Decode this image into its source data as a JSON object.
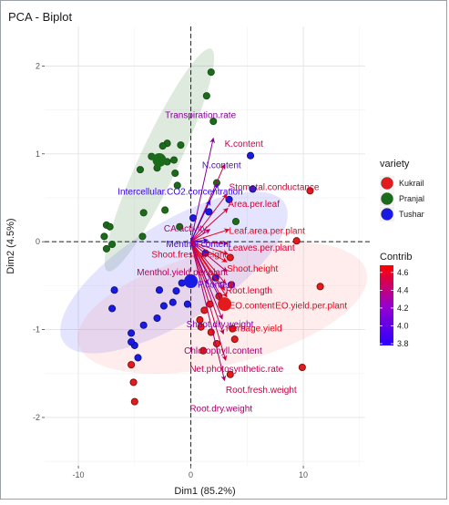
{
  "chart_data": {
    "type": "scatter",
    "title": "PCA - Biplot",
    "xlabel": "Dim1 (85.2%)",
    "ylabel": "Dim2 (4.5%)",
    "xlim": [
      -13,
      15.5
    ],
    "ylim": [
      -2.55,
      2.45
    ],
    "xticks": [
      -10,
      0,
      10
    ],
    "yticks": [
      -2,
      -1,
      0,
      1,
      2
    ],
    "xtick_labels": [
      "-10",
      "0",
      "10"
    ],
    "ytick_labels": [
      "-2",
      "-1",
      "0",
      "1",
      "2"
    ],
    "grid": true,
    "legend_placement": "right",
    "legend_variety": {
      "title": "variety",
      "entries": [
        {
          "name": "Kukrail",
          "color": "#e41a1c"
        },
        {
          "name": "Pranjal",
          "color": "#1a6b1a"
        },
        {
          "name": "Tushar",
          "color": "#1a1ae6"
        }
      ]
    },
    "legend_contrib": {
      "title": "Contrib",
      "range": [
        3.78,
        4.68
      ],
      "ticks": [
        "4.6",
        "4.4",
        "4.2",
        "4.0",
        "3.8"
      ],
      "tick_values": [
        4.6,
        4.4,
        4.2,
        4.0,
        3.8
      ],
      "low_color": "#2b00ff",
      "high_color": "#ff0000"
    },
    "ellipses": [
      {
        "group": "Pranjal",
        "color": "#1a6b1a",
        "cx": -2.8,
        "cy": 0.93,
        "rx": 10.9,
        "ry": 0.37,
        "angle": -65
      },
      {
        "group": "Tushar",
        "color": "#4040ff",
        "cx": -1.5,
        "cy": -0.35,
        "rx": 11.6,
        "ry": 0.93,
        "angle": -32
      },
      {
        "group": "Kukrail",
        "color": "#ff8080",
        "cx": 2.8,
        "cy": -0.75,
        "rx": 13.2,
        "ry": 1.08,
        "angle": -14
      }
    ],
    "series": [
      {
        "name": "Pranjal",
        "color": "#1a6b1a",
        "x": [
          1.8,
          1.4,
          2.0,
          -2.1,
          -0.9,
          -2.5,
          -3.5,
          -1.5,
          -2.1,
          -3.0,
          -4.5,
          -1.4,
          -1.2,
          -2.3,
          -4.2,
          -1.0,
          -4.3,
          -7.0,
          -7.5,
          -7.7,
          -7.5,
          -7.2,
          2.3,
          4.0
        ],
        "y": [
          1.93,
          1.66,
          1.37,
          1.12,
          1.1,
          1.09,
          0.97,
          0.93,
          0.91,
          0.84,
          0.82,
          0.78,
          0.64,
          0.36,
          0.33,
          0.17,
          0.06,
          -0.03,
          -0.08,
          0.06,
          0.19,
          0.17,
          0.67,
          0.23
        ],
        "size": [
          6,
          6,
          6,
          6,
          6,
          6,
          6,
          6,
          6,
          6,
          6,
          6,
          6,
          6,
          6,
          6,
          6,
          6,
          6,
          6,
          6,
          6,
          6,
          6
        ]
      },
      {
        "name": "Tushar",
        "color": "#1a1ae6",
        "x": [
          5.3,
          5.5,
          3.4,
          1.6,
          0.2,
          1.3,
          2.2,
          -0.8,
          -1.3,
          -1.6,
          -2.4,
          -2.8,
          -3.0,
          -4.2,
          -5.3,
          -5.0,
          -5.3,
          -4.7,
          -6.8,
          -7.0,
          -0.3
        ],
        "y": [
          0.98,
          0.6,
          0.48,
          0.34,
          0.27,
          -0.13,
          -0.41,
          -0.47,
          -0.56,
          -0.69,
          -0.73,
          -0.55,
          -0.87,
          -0.95,
          -1.04,
          -1.18,
          -1.14,
          -1.32,
          -0.55,
          -0.76,
          -0.71
        ],
        "size": [
          6,
          6,
          6,
          6,
          6,
          6,
          6,
          6,
          6,
          6,
          6,
          6,
          6,
          6,
          6,
          6,
          6,
          6,
          6,
          6,
          6
        ]
      },
      {
        "name": "Kukrail",
        "color": "#e41a1c",
        "x": [
          10.6,
          9.4,
          11.5,
          3.5,
          3.6,
          2.5,
          1.7,
          1.2,
          0.9,
          3.7,
          1.8,
          3.9,
          1.1,
          9.9,
          2.3,
          3.5,
          -5.0,
          -5.1,
          -5.3,
          0.8
        ],
        "y": [
          0.58,
          0.01,
          -0.51,
          -0.18,
          -0.49,
          -0.62,
          -0.71,
          -0.78,
          -0.97,
          -0.99,
          -1.03,
          -1.11,
          -1.24,
          -1.43,
          -1.16,
          -1.51,
          -1.82,
          -1.6,
          -1.4,
          -0.89
        ],
        "size": [
          6,
          6,
          6,
          6,
          6,
          6,
          6,
          6,
          6,
          6,
          6,
          6,
          6,
          6,
          6,
          6,
          6,
          6,
          6,
          6
        ]
      }
    ],
    "centroids": [
      {
        "group": "Pranjal",
        "x": -2.8,
        "y": 0.93,
        "color": "#1a6b1a"
      },
      {
        "group": "Tushar",
        "x": 0.0,
        "y": -0.45,
        "color": "#1a1ae6"
      },
      {
        "group": "Kukrail",
        "x": 3.0,
        "y": -0.71,
        "color": "#e41a1c"
      }
    ],
    "variables": [
      {
        "label": "Transpiration.rate",
        "x": 2.0,
        "y": 1.18,
        "contrib": 4.15,
        "lx": -2.3,
        "ly": 1.45
      },
      {
        "label": "K.content",
        "x": 3.0,
        "y": 0.88,
        "contrib": 4.45,
        "lx": 3.0,
        "ly": 1.12
      },
      {
        "label": "N.content",
        "x": 2.4,
        "y": 0.66,
        "contrib": 3.95,
        "lx": 1.0,
        "ly": 0.88
      },
      {
        "label": "Stomatal.conductance",
        "x": 3.2,
        "y": 0.54,
        "contrib": 4.5,
        "lx": 3.4,
        "ly": 0.63
      },
      {
        "label": "Intercellular.CO2.concentration",
        "x": 1.7,
        "y": 0.47,
        "contrib": 3.85,
        "lx": -6.5,
        "ly": 0.58
      },
      {
        "label": "Area.per.leaf",
        "x": 3.3,
        "y": 0.38,
        "contrib": 4.5,
        "lx": 3.3,
        "ly": 0.44
      },
      {
        "label": "CA.activity",
        "x": 1.7,
        "y": 0.14,
        "contrib": 4.35,
        "lx": -2.4,
        "ly": 0.16
      },
      {
        "label": "Leaf.area.per.plant",
        "x": 3.4,
        "y": 0.14,
        "contrib": 4.6,
        "lx": 3.4,
        "ly": 0.13
      },
      {
        "label": "Menthol.content",
        "x": 1.5,
        "y": 0.02,
        "contrib": 3.9,
        "lx": -2.2,
        "ly": -0.02
      },
      {
        "label": "Leaves.per.plant",
        "x": 3.3,
        "y": -0.02,
        "contrib": 4.5,
        "lx": 3.3,
        "ly": -0.06
      },
      {
        "label": "Shoot.fresh.weight",
        "x": 3.3,
        "y": -0.14,
        "contrib": 4.55,
        "lx": -3.5,
        "ly": -0.14
      },
      {
        "label": "Shoot.height",
        "x": 3.2,
        "y": -0.23,
        "contrib": 4.6,
        "lx": 3.2,
        "ly": -0.3
      },
      {
        "label": "Menthol.yield.per.plant",
        "x": 3.2,
        "y": -0.34,
        "contrib": 4.35,
        "lx": -4.8,
        "ly": -0.34
      },
      {
        "label": "Root.length",
        "x": 3.1,
        "y": -0.48,
        "contrib": 4.5,
        "lx": 3.1,
        "ly": -0.55
      },
      {
        "label": "P.content",
        "x": 1.5,
        "y": -0.48,
        "contrib": 4.0,
        "lx": 0.6,
        "ly": -0.48
      },
      {
        "label": "EO.content",
        "x": 3.0,
        "y": -0.55,
        "contrib": 4.55,
        "lx": 3.4,
        "ly": -0.72
      },
      {
        "label": "EO.yield.per.plant",
        "x": 3.2,
        "y": -0.63,
        "contrib": 4.6,
        "lx": 7.5,
        "ly": -0.72
      },
      {
        "label": "Shoot.dry.weight",
        "x": 2.8,
        "y": -0.7,
        "contrib": 4.1,
        "lx": -0.4,
        "ly": -0.93
      },
      {
        "label": "Herbage.yield",
        "x": 3.1,
        "y": -0.72,
        "contrib": 4.6,
        "lx": 3.1,
        "ly": -0.98
      },
      {
        "label": "Chlorophyll.content",
        "x": 2.8,
        "y": -0.88,
        "contrib": 4.3,
        "lx": -0.6,
        "ly": -1.23
      },
      {
        "label": "Net.photosynthetic.rate",
        "x": 2.9,
        "y": -1.05,
        "contrib": 4.4,
        "lx": -0.1,
        "ly": -1.44
      },
      {
        "label": "Root.fresh.weight",
        "x": 3.1,
        "y": -1.35,
        "contrib": 4.45,
        "lx": 3.1,
        "ly": -1.68
      },
      {
        "label": "Root.dry.weight",
        "x": 3.0,
        "y": -1.58,
        "contrib": 4.3,
        "lx": -0.1,
        "ly": -1.89
      }
    ]
  }
}
